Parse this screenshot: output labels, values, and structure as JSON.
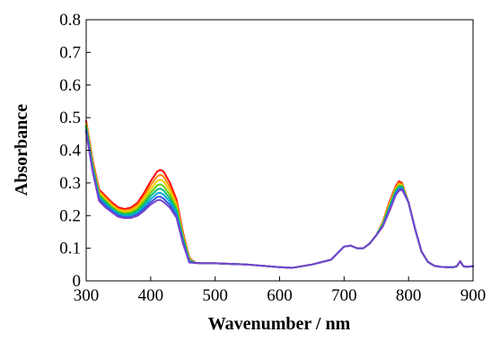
{
  "chart_data": {
    "type": "line",
    "title": "",
    "xlabel": "Wavenumber / nm",
    "ylabel": "Absorbance",
    "xlim": [
      300,
      900
    ],
    "ylim": [
      0,
      0.8
    ],
    "xticks": [
      300,
      400,
      500,
      600,
      700,
      800,
      900
    ],
    "yticks": [
      0,
      0.1,
      0.2,
      0.3,
      0.4,
      0.5,
      0.6,
      0.7,
      0.8
    ],
    "grid": false,
    "legend": "none",
    "x": [
      300,
      310,
      320,
      330,
      340,
      350,
      360,
      370,
      380,
      390,
      400,
      410,
      415,
      420,
      430,
      440,
      450,
      460,
      470,
      480,
      500,
      550,
      600,
      620,
      650,
      680,
      690,
      700,
      710,
      720,
      730,
      740,
      750,
      760,
      770,
      780,
      785,
      790,
      800,
      810,
      820,
      830,
      840,
      850,
      860,
      870,
      875,
      880,
      885,
      890,
      900
    ],
    "series": [
      {
        "color": "#ff0000",
        "values": [
          0.49,
          0.37,
          0.28,
          0.26,
          0.24,
          0.225,
          0.22,
          0.225,
          0.24,
          0.27,
          0.305,
          0.335,
          0.34,
          0.335,
          0.3,
          0.25,
          0.15,
          0.07,
          0.055,
          0.054,
          0.054,
          0.05,
          0.042,
          0.04,
          0.05,
          0.065,
          0.085,
          0.105,
          0.108,
          0.1,
          0.1,
          0.115,
          0.14,
          0.18,
          0.24,
          0.29,
          0.305,
          0.3,
          0.24,
          0.16,
          0.09,
          0.058,
          0.046,
          0.043,
          0.042,
          0.042,
          0.045,
          0.06,
          0.045,
          0.043,
          0.045
        ]
      },
      {
        "color": "#ff8800",
        "values": [
          0.485,
          0.365,
          0.275,
          0.255,
          0.235,
          0.22,
          0.216,
          0.22,
          0.233,
          0.26,
          0.293,
          0.32,
          0.325,
          0.32,
          0.287,
          0.24,
          0.145,
          0.068,
          0.055,
          0.054,
          0.054,
          0.05,
          0.042,
          0.04,
          0.05,
          0.065,
          0.085,
          0.105,
          0.108,
          0.1,
          0.1,
          0.115,
          0.14,
          0.178,
          0.236,
          0.286,
          0.3,
          0.297,
          0.24,
          0.16,
          0.09,
          0.058,
          0.046,
          0.043,
          0.042,
          0.042,
          0.045,
          0.06,
          0.045,
          0.043,
          0.045
        ]
      },
      {
        "color": "#eecc00",
        "values": [
          0.48,
          0.36,
          0.27,
          0.25,
          0.23,
          0.216,
          0.212,
          0.215,
          0.227,
          0.252,
          0.281,
          0.306,
          0.31,
          0.305,
          0.275,
          0.232,
          0.14,
          0.066,
          0.055,
          0.054,
          0.054,
          0.05,
          0.042,
          0.04,
          0.05,
          0.065,
          0.085,
          0.105,
          0.108,
          0.1,
          0.1,
          0.115,
          0.14,
          0.176,
          0.232,
          0.282,
          0.296,
          0.294,
          0.24,
          0.16,
          0.09,
          0.058,
          0.046,
          0.043,
          0.042,
          0.042,
          0.045,
          0.06,
          0.045,
          0.043,
          0.045
        ]
      },
      {
        "color": "#66cc00",
        "values": [
          0.475,
          0.355,
          0.265,
          0.245,
          0.226,
          0.212,
          0.207,
          0.21,
          0.221,
          0.244,
          0.27,
          0.293,
          0.296,
          0.29,
          0.263,
          0.224,
          0.135,
          0.064,
          0.055,
          0.054,
          0.054,
          0.05,
          0.042,
          0.04,
          0.05,
          0.065,
          0.085,
          0.105,
          0.108,
          0.1,
          0.1,
          0.115,
          0.14,
          0.174,
          0.228,
          0.278,
          0.292,
          0.291,
          0.24,
          0.16,
          0.09,
          0.058,
          0.046,
          0.043,
          0.042,
          0.042,
          0.045,
          0.06,
          0.045,
          0.043,
          0.045
        ]
      },
      {
        "color": "#00bb77",
        "values": [
          0.47,
          0.35,
          0.26,
          0.24,
          0.222,
          0.208,
          0.203,
          0.205,
          0.215,
          0.236,
          0.26,
          0.28,
          0.283,
          0.277,
          0.252,
          0.216,
          0.13,
          0.062,
          0.055,
          0.054,
          0.054,
          0.05,
          0.042,
          0.04,
          0.05,
          0.065,
          0.085,
          0.105,
          0.108,
          0.1,
          0.1,
          0.115,
          0.14,
          0.172,
          0.224,
          0.274,
          0.288,
          0.288,
          0.24,
          0.16,
          0.09,
          0.058,
          0.046,
          0.043,
          0.042,
          0.042,
          0.045,
          0.06,
          0.045,
          0.043,
          0.045
        ]
      },
      {
        "color": "#00aadd",
        "values": [
          0.465,
          0.345,
          0.255,
          0.235,
          0.218,
          0.204,
          0.199,
          0.2,
          0.209,
          0.228,
          0.25,
          0.268,
          0.27,
          0.264,
          0.242,
          0.208,
          0.125,
          0.06,
          0.055,
          0.054,
          0.054,
          0.05,
          0.042,
          0.04,
          0.05,
          0.065,
          0.085,
          0.105,
          0.108,
          0.1,
          0.1,
          0.115,
          0.14,
          0.17,
          0.22,
          0.27,
          0.284,
          0.285,
          0.24,
          0.16,
          0.09,
          0.058,
          0.046,
          0.043,
          0.042,
          0.042,
          0.045,
          0.06,
          0.045,
          0.043,
          0.045
        ]
      },
      {
        "color": "#3355dd",
        "values": [
          0.46,
          0.34,
          0.25,
          0.23,
          0.214,
          0.2,
          0.195,
          0.196,
          0.204,
          0.221,
          0.241,
          0.257,
          0.258,
          0.252,
          0.232,
          0.2,
          0.12,
          0.058,
          0.055,
          0.054,
          0.054,
          0.05,
          0.042,
          0.04,
          0.05,
          0.065,
          0.085,
          0.105,
          0.108,
          0.1,
          0.1,
          0.115,
          0.14,
          0.168,
          0.216,
          0.266,
          0.28,
          0.282,
          0.24,
          0.16,
          0.09,
          0.058,
          0.046,
          0.043,
          0.042,
          0.042,
          0.045,
          0.06,
          0.045,
          0.043,
          0.045
        ]
      },
      {
        "color": "#7744cc",
        "values": [
          0.455,
          0.335,
          0.245,
          0.225,
          0.21,
          0.196,
          0.192,
          0.193,
          0.2,
          0.215,
          0.234,
          0.247,
          0.248,
          0.242,
          0.224,
          0.194,
          0.115,
          0.056,
          0.055,
          0.054,
          0.054,
          0.05,
          0.042,
          0.04,
          0.05,
          0.065,
          0.085,
          0.105,
          0.108,
          0.1,
          0.1,
          0.115,
          0.14,
          0.166,
          0.212,
          0.262,
          0.276,
          0.279,
          0.24,
          0.16,
          0.09,
          0.058,
          0.046,
          0.043,
          0.042,
          0.042,
          0.045,
          0.06,
          0.045,
          0.043,
          0.045
        ]
      }
    ]
  }
}
